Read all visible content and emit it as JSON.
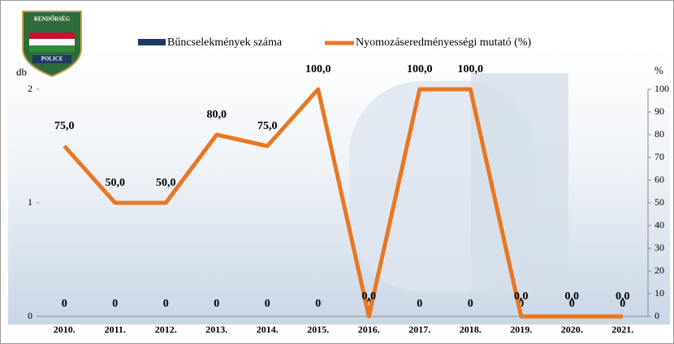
{
  "logo": {
    "top": "RENDŐRSÉG",
    "bottom": "POLICE"
  },
  "chart_data": {
    "type": "bar-line",
    "ylabel": "db",
    "y2label": "%",
    "categories": [
      "2010.",
      "2011.",
      "2012.",
      "2013.",
      "2014.",
      "2015.",
      "2016.",
      "2017.",
      "2018.",
      "2019.",
      "2020.",
      "2021."
    ],
    "series": [
      {
        "name": "Bűncselekmények száma",
        "type": "bar",
        "color": "#1f3864",
        "values": [
          0,
          0,
          0,
          0,
          0,
          0,
          0,
          0,
          0,
          0,
          0,
          0
        ]
      },
      {
        "name": "Nyomozáseredményességi mutató (%)",
        "type": "line",
        "axis": "y2",
        "color": "#e87722",
        "values": [
          75,
          50,
          50,
          80,
          75,
          100,
          0,
          100,
          100,
          0,
          0,
          0
        ],
        "value_labels": [
          "75,0",
          "50,0",
          "50,0",
          "80,0",
          "75,0",
          "100,0",
          "0,0",
          "100,0",
          "100,0",
          "0,0",
          "0,0",
          "0,0"
        ]
      }
    ],
    "ylim": [
      0,
      2
    ],
    "yticks": [
      0,
      1,
      2
    ],
    "y2lim": [
      0,
      100
    ],
    "y2ticks": [
      0,
      10,
      20,
      30,
      40,
      50,
      60,
      70,
      80,
      90,
      100
    ],
    "legend": "top",
    "grid": false
  }
}
